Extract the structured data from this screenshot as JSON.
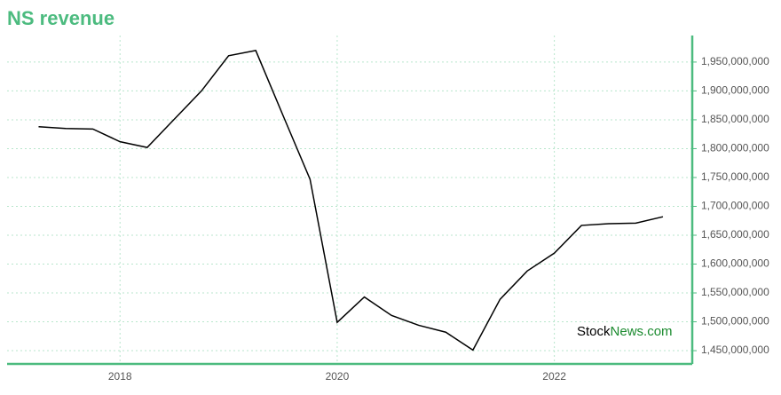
{
  "chart_data": {
    "type": "line",
    "title": "NS revenue",
    "x": [
      2017.25,
      2017.5,
      2017.75,
      2018,
      2018.25,
      2018.5,
      2018.75,
      2019,
      2019.25,
      2019.5,
      2019.75,
      2020,
      2020.25,
      2020.5,
      2020.75,
      2021,
      2021.25,
      2021.5,
      2021.75,
      2022,
      2022.25,
      2022.5,
      2022.75,
      2023
    ],
    "series": [
      {
        "color": "#000000",
        "values": [
          1838000000,
          1835000000,
          1834000000,
          1812000000,
          1802000000,
          1851000000,
          1900000000,
          1961000000,
          1970000000,
          1858000000,
          1747000000,
          1499000000,
          1543000000,
          1511000000,
          1494000000,
          1482000000,
          1451000000,
          1539000000,
          1588000000,
          1619000000,
          1667000000,
          1670000000,
          1671000000,
          1682000000
        ]
      }
    ],
    "xlim": [
      2016.96,
      2023.27
    ],
    "xticks": [
      2018,
      2020,
      2022
    ],
    "ylim": [
      1427000000,
      1996000000
    ],
    "yticks": [
      {
        "value": 1450000000,
        "label": "1,450,000,000"
      },
      {
        "value": 1500000000,
        "label": "1,500,000,000"
      },
      {
        "value": 1550000000,
        "label": "1,550,000,000"
      },
      {
        "value": 1600000000,
        "label": "1,600,000,000"
      },
      {
        "value": 1650000000,
        "label": "1,650,000,000"
      },
      {
        "value": 1700000000,
        "label": "1,700,000,000"
      },
      {
        "value": 1750000000,
        "label": "1,750,000,000"
      },
      {
        "value": 1800000000,
        "label": "1,800,000,000"
      },
      {
        "value": 1850000000,
        "label": "1,850,000,000"
      },
      {
        "value": 1900000000,
        "label": "1,900,000,000"
      },
      {
        "value": 1950000000,
        "label": "1,950,000,000"
      }
    ],
    "grid": true,
    "axis_color": "#4cbb7f",
    "watermark": {
      "part1": "Stock",
      "part2": "News",
      "part3": ".com"
    }
  }
}
